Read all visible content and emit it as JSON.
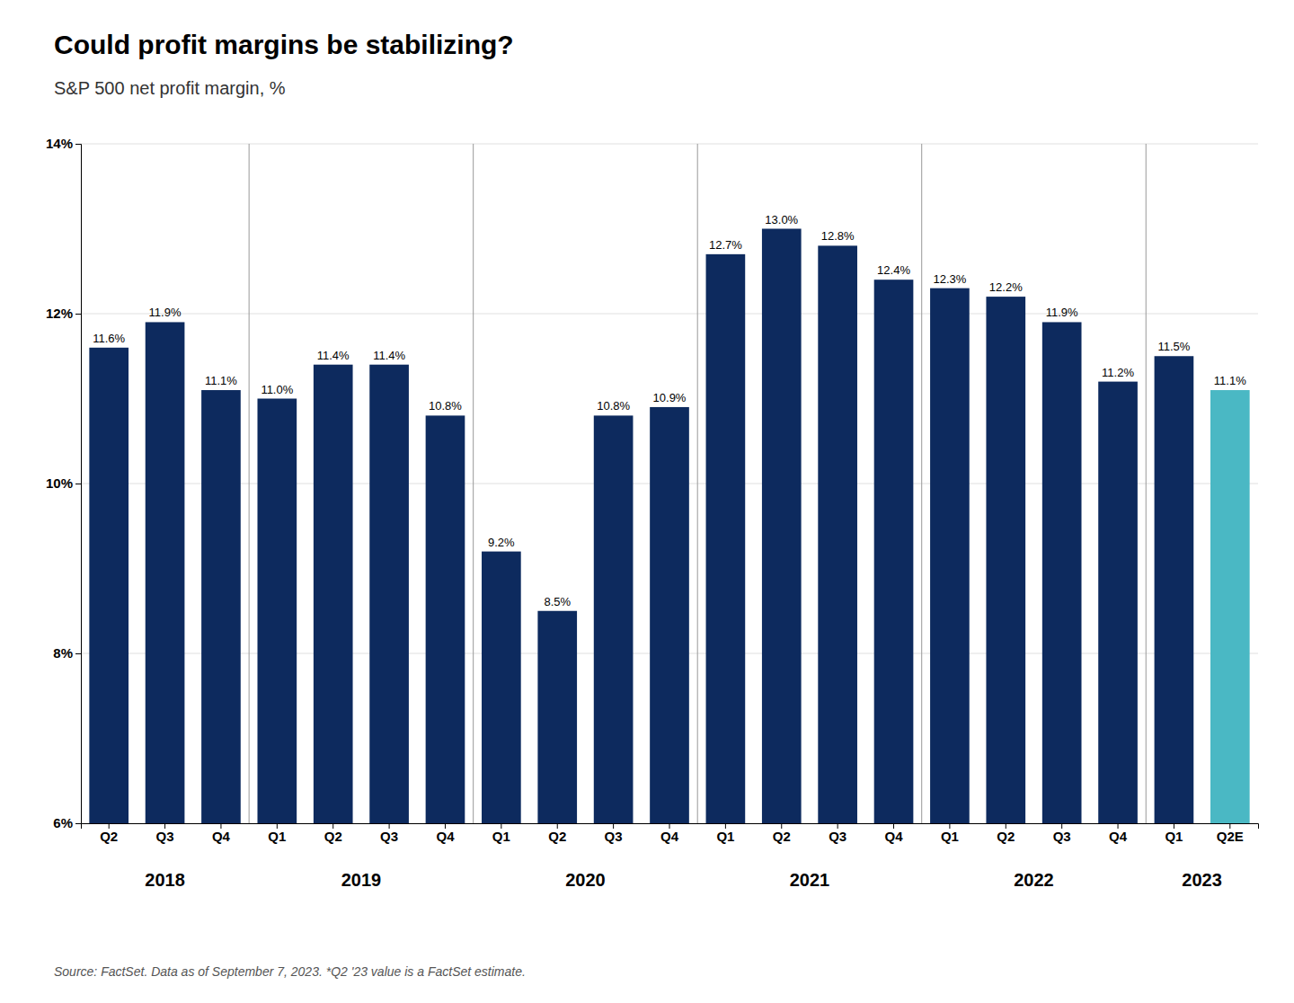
{
  "chart_data": {
    "type": "bar",
    "title": "Could profit margins be stabilizing?",
    "subtitle": "S&P 500 net profit margin, %",
    "source": "Source: FactSet. Data as of September 7, 2023. *Q2 '23 value is a FactSet estimate.",
    "categories": [
      "Q2",
      "Q3",
      "Q4",
      "Q1",
      "Q2",
      "Q3",
      "Q4",
      "Q1",
      "Q2",
      "Q3",
      "Q4",
      "Q1",
      "Q2",
      "Q3",
      "Q4",
      "Q1",
      "Q2",
      "Q3",
      "Q4",
      "Q1",
      "Q2E"
    ],
    "values": [
      11.6,
      11.9,
      11.1,
      11.0,
      11.4,
      11.4,
      10.8,
      9.2,
      8.5,
      10.8,
      10.9,
      12.7,
      13.0,
      12.8,
      12.4,
      12.3,
      12.2,
      11.9,
      11.2,
      11.5,
      11.1
    ],
    "value_labels": [
      "11.6%",
      "11.9%",
      "11.1%",
      "11.0%",
      "11.4%",
      "11.4%",
      "10.8%",
      "9.2%",
      "8.5%",
      "10.8%",
      "10.9%",
      "12.7%",
      "13.0%",
      "12.8%",
      "12.4%",
      "12.3%",
      "12.2%",
      "11.9%",
      "11.2%",
      "11.5%",
      "11.1%"
    ],
    "colors": [
      "#0d2a5e",
      "#0d2a5e",
      "#0d2a5e",
      "#0d2a5e",
      "#0d2a5e",
      "#0d2a5e",
      "#0d2a5e",
      "#0d2a5e",
      "#0d2a5e",
      "#0d2a5e",
      "#0d2a5e",
      "#0d2a5e",
      "#0d2a5e",
      "#0d2a5e",
      "#0d2a5e",
      "#0d2a5e",
      "#0d2a5e",
      "#0d2a5e",
      "#0d2a5e",
      "#0d2a5e",
      "#4ab8c4"
    ],
    "year_labels": [
      "2018",
      "2019",
      "2020",
      "2021",
      "2022",
      "2023"
    ],
    "year_spans": [
      [
        0,
        3
      ],
      [
        3,
        7
      ],
      [
        7,
        11
      ],
      [
        11,
        15
      ],
      [
        15,
        19
      ],
      [
        19,
        21
      ]
    ],
    "ylim": [
      6,
      14
    ],
    "yticks": [
      {
        "value": 6,
        "label": "6%"
      },
      {
        "value": 8,
        "label": "8%"
      },
      {
        "value": 10,
        "label": "10%"
      },
      {
        "value": 12,
        "label": "12%"
      },
      {
        "value": 14,
        "label": "14%"
      }
    ],
    "grid": true,
    "data_labels": true
  }
}
